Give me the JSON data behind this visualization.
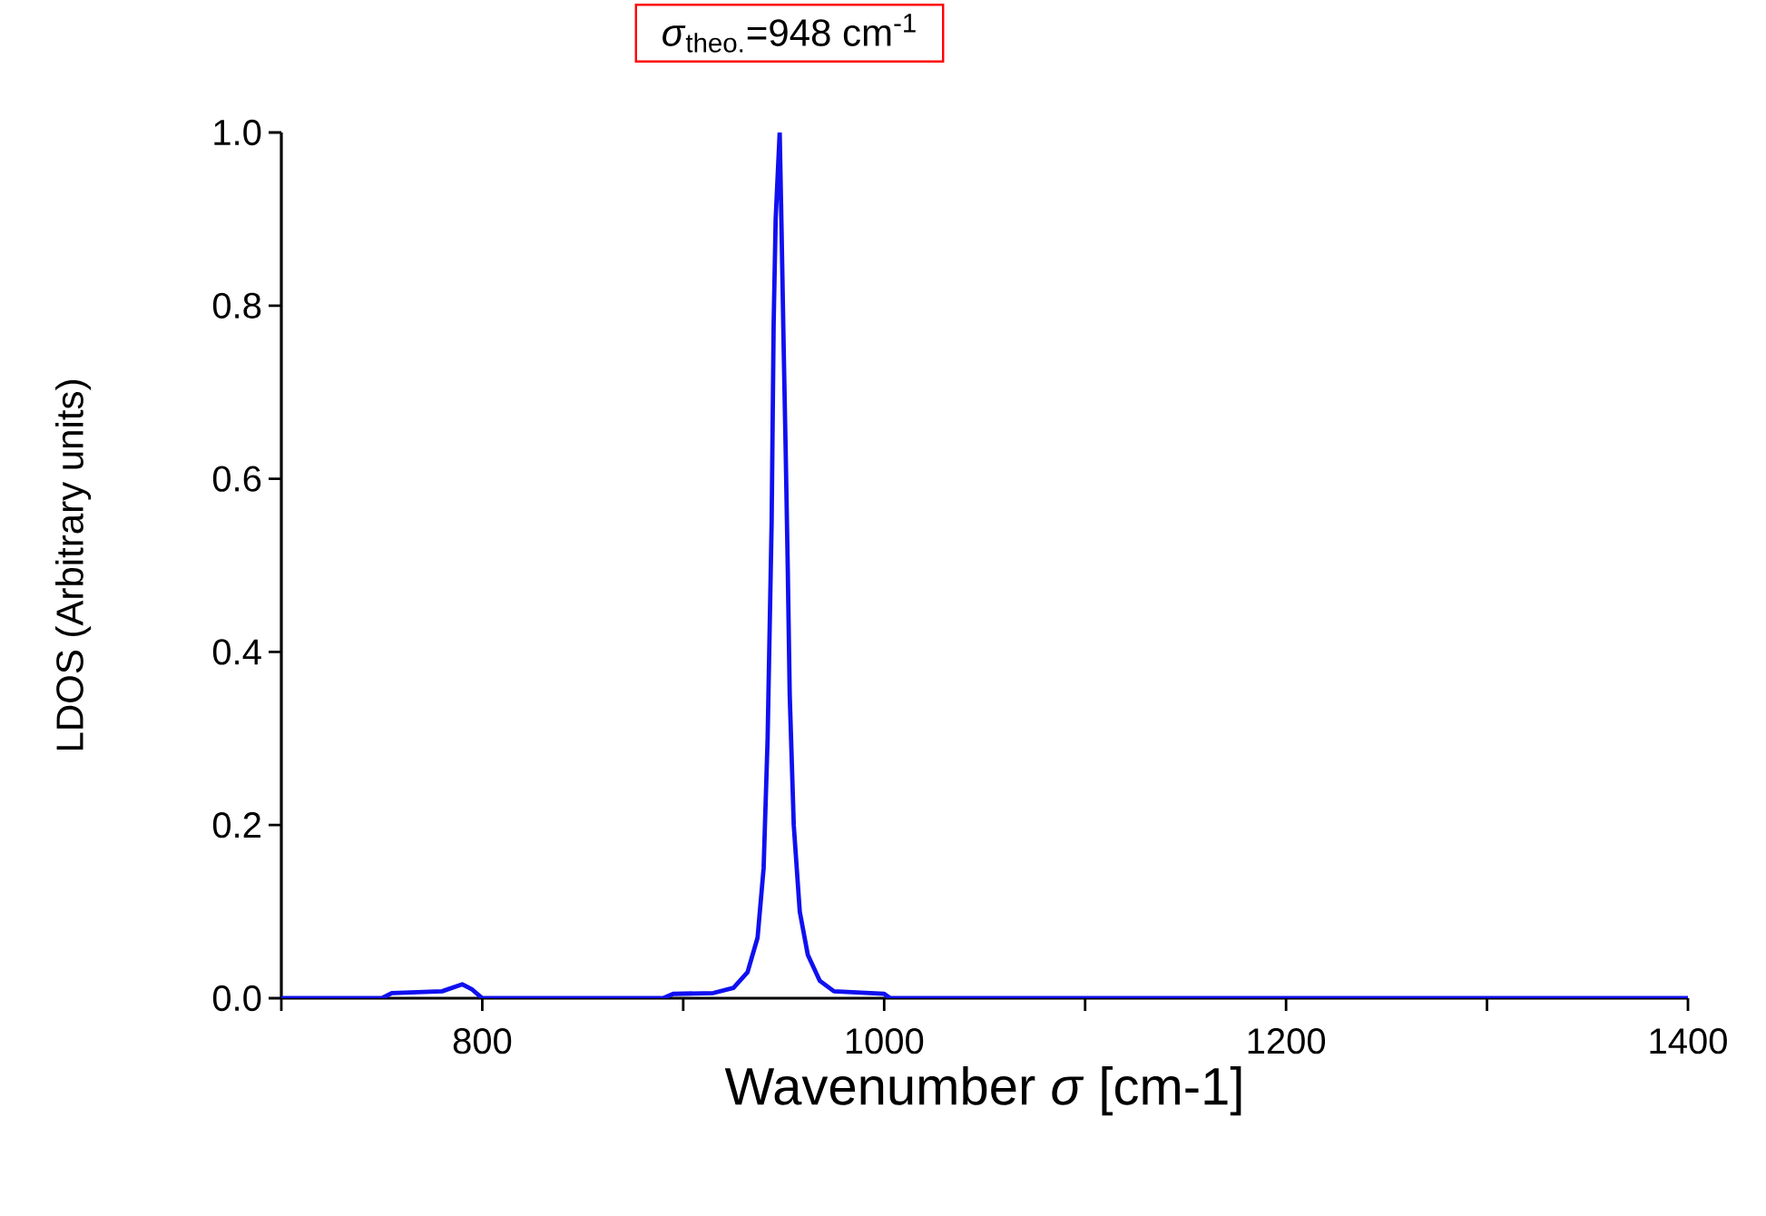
{
  "chart_data": {
    "type": "line",
    "xlabel": "Wavenumber *σ* [cm-1]",
    "ylabel": "LDOS (Arbitrary units)",
    "annotations": [
      "*σ*$_{theo.}$=948 cm$^{-1}$"
    ],
    "x": [
      700,
      750,
      755,
      780,
      790,
      795,
      800,
      890,
      895,
      915,
      925,
      932,
      937,
      940,
      942,
      944,
      945,
      946,
      948,
      949,
      950,
      951,
      952,
      953,
      955,
      958,
      962,
      968,
      975,
      1000,
      1003,
      1400
    ],
    "series": [
      {
        "color": "#1010f0",
        "values": [
          0.0,
          0.0,
          0.006,
          0.008,
          0.016,
          0.01,
          0.0,
          0.0,
          0.005,
          0.006,
          0.012,
          0.03,
          0.07,
          0.15,
          0.3,
          0.55,
          0.78,
          0.9,
          1.0,
          0.88,
          0.75,
          0.63,
          0.5,
          0.35,
          0.2,
          0.1,
          0.05,
          0.02,
          0.008,
          0.005,
          0.0,
          0.0
        ]
      }
    ],
    "xlim": [
      700,
      1400
    ],
    "ylim": [
      0,
      1.0
    ],
    "xticks": [
      {
        "value": 700,
        "label": null
      },
      800,
      {
        "value": 900,
        "label": null
      },
      1000,
      {
        "value": 1100,
        "label": null
      },
      1200,
      {
        "value": 1300,
        "label": null
      },
      1400
    ],
    "yticks": [
      {
        "value": 0,
        "label": "0.0"
      },
      0.2,
      0.4,
      0.6,
      0.8,
      {
        "value": 1.0,
        "label": "1.0"
      }
    ],
    "grid": false,
    "marker": "none",
    "line_style": "solid"
  }
}
